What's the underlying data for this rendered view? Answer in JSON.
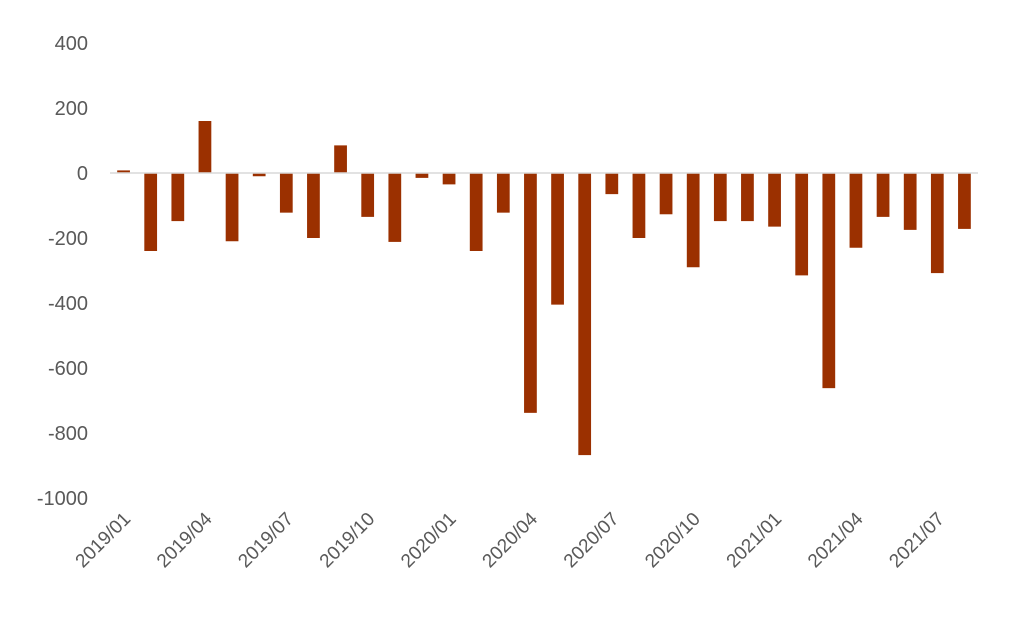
{
  "chart_data": {
    "type": "bar",
    "title": "",
    "xlabel": "",
    "ylabel": "",
    "ylim": [
      -1000,
      400
    ],
    "yticks": [
      400,
      200,
      0,
      -200,
      -400,
      -600,
      -800,
      -1000
    ],
    "grid": false,
    "legend": "none",
    "bar_color": "#9B3000",
    "axis_color": "#D9D9D9",
    "text_color": "#595959",
    "categories": [
      "2019/01",
      "2019/02",
      "2019/03",
      "2019/04",
      "2019/05",
      "2019/06",
      "2019/07",
      "2019/08",
      "2019/09",
      "2019/10",
      "2019/11",
      "2019/12",
      "2020/01",
      "2020/02",
      "2020/03",
      "2020/04",
      "2020/05",
      "2020/06",
      "2020/07",
      "2020/08",
      "2020/09",
      "2020/10",
      "2020/11",
      "2020/12",
      "2021/01",
      "2021/02",
      "2021/03",
      "2021/04",
      "2021/05",
      "2021/06",
      "2021/07",
      "2021/08"
    ],
    "xtick_labels": [
      "2019/01",
      "2019/04",
      "2019/07",
      "2019/10",
      "2020/01",
      "2020/04",
      "2020/07",
      "2020/10",
      "2021/01",
      "2021/04",
      "2021/07"
    ],
    "values": [
      8,
      -240,
      -148,
      160,
      -210,
      -10,
      -122,
      -200,
      85,
      -135,
      -212,
      -15,
      -35,
      -240,
      -122,
      -738,
      -405,
      -868,
      -65,
      -200,
      -127,
      -290,
      -148,
      -148,
      -165,
      -315,
      -662,
      -230,
      -135,
      -175,
      -308,
      -172
    ]
  }
}
